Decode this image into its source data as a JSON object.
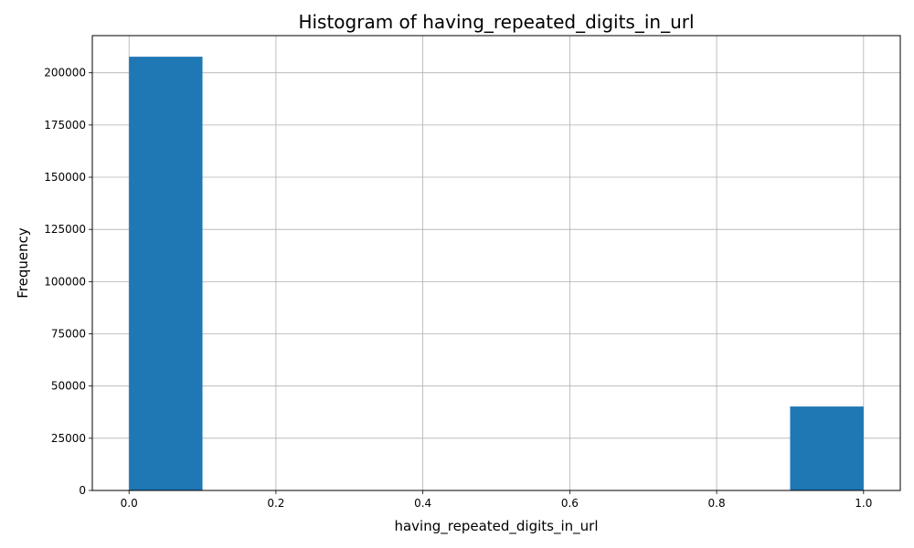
{
  "chart_data": {
    "type": "bar",
    "title": "Histogram of having_repeated_digits_in_url",
    "xlabel": "having_repeated_digits_in_url",
    "ylabel": "Frequency",
    "xlim": [
      -0.05,
      1.05
    ],
    "ylim": [
      0,
      217800
    ],
    "grid": true,
    "bar_color": "#1f77b4",
    "bins": [
      {
        "start": 0.0,
        "end": 0.1,
        "value": 207700
      },
      {
        "start": 0.1,
        "end": 0.2,
        "value": 0
      },
      {
        "start": 0.2,
        "end": 0.3,
        "value": 0
      },
      {
        "start": 0.3,
        "end": 0.4,
        "value": 0
      },
      {
        "start": 0.4,
        "end": 0.5,
        "value": 0
      },
      {
        "start": 0.5,
        "end": 0.6,
        "value": 0
      },
      {
        "start": 0.6,
        "end": 0.7,
        "value": 0
      },
      {
        "start": 0.7,
        "end": 0.8,
        "value": 0
      },
      {
        "start": 0.8,
        "end": 0.9,
        "value": 0
      },
      {
        "start": 0.9,
        "end": 1.0,
        "value": 40200
      }
    ],
    "x_ticks": [
      {
        "value": 0.0,
        "label": "0.0"
      },
      {
        "value": 0.2,
        "label": "0.2"
      },
      {
        "value": 0.4,
        "label": "0.4"
      },
      {
        "value": 0.6,
        "label": "0.6"
      },
      {
        "value": 0.8,
        "label": "0.8"
      },
      {
        "value": 1.0,
        "label": "1.0"
      }
    ],
    "y_ticks": [
      {
        "value": 0,
        "label": "0"
      },
      {
        "value": 25000,
        "label": "25000"
      },
      {
        "value": 50000,
        "label": "50000"
      },
      {
        "value": 75000,
        "label": "75000"
      },
      {
        "value": 100000,
        "label": "100000"
      },
      {
        "value": 125000,
        "label": "125000"
      },
      {
        "value": 150000,
        "label": "150000"
      },
      {
        "value": 175000,
        "label": "175000"
      },
      {
        "value": 200000,
        "label": "200000"
      }
    ]
  }
}
